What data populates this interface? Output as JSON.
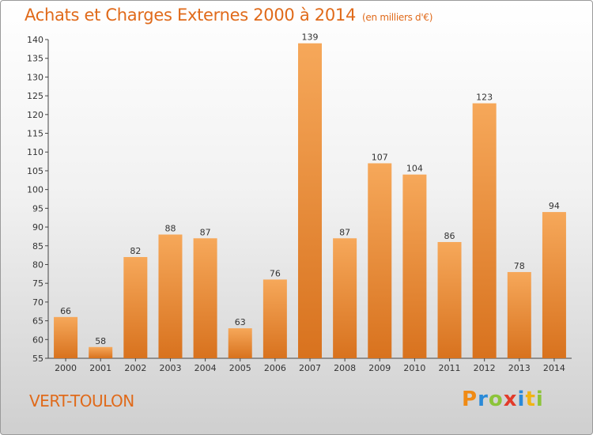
{
  "chart_data": {
    "type": "bar",
    "title": "Achats et Charges Externes 2000 à 2014",
    "subtitle": "(en milliers d'€)",
    "categories": [
      "2000",
      "2001",
      "2002",
      "2003",
      "2004",
      "2005",
      "2006",
      "2007",
      "2008",
      "2009",
      "2010",
      "2011",
      "2012",
      "2013",
      "2014"
    ],
    "values": [
      66,
      58,
      82,
      88,
      87,
      63,
      76,
      139,
      87,
      107,
      104,
      86,
      123,
      78,
      94
    ],
    "ylim": [
      55,
      140
    ],
    "yticks": [
      55,
      60,
      65,
      70,
      75,
      80,
      85,
      90,
      95,
      100,
      105,
      110,
      115,
      120,
      125,
      130,
      135,
      140
    ],
    "grid": false,
    "bar_color": "#f0a050"
  },
  "footer": {
    "commune": "VERT-TOULON",
    "logo_letters": [
      "P",
      "r",
      "o",
      "x",
      "i",
      "t",
      "i"
    ]
  }
}
